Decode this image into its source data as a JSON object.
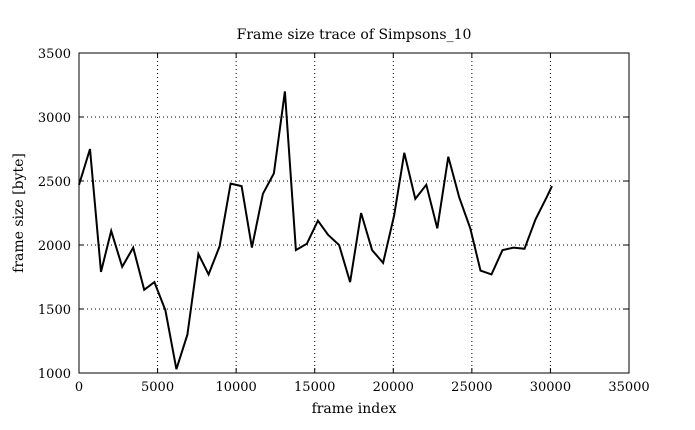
{
  "chart_data": {
    "type": "line",
    "title": "Frame size trace of Simpsons_10",
    "xlabel": "frame index",
    "ylabel": "frame size [byte]",
    "xlim": [
      0,
      35000
    ],
    "ylim": [
      1000,
      3500
    ],
    "xticks": [
      0,
      5000,
      10000,
      15000,
      20000,
      25000,
      30000,
      35000
    ],
    "yticks": [
      1000,
      1500,
      2000,
      2500,
      3000,
      3500
    ],
    "xtick_labels": [
      "0",
      "5000",
      "10000",
      "15000",
      "20000",
      "25000",
      "30000",
      "35000"
    ],
    "ytick_labels": [
      "1000",
      "1500",
      "2000",
      "2500",
      "3000",
      "3500"
    ],
    "grid": true,
    "line_color": "#000000",
    "series": [
      {
        "x": [
          0,
          700,
          1400,
          2050,
          2750,
          3450,
          4150,
          4800,
          5500,
          6200,
          6900,
          7600,
          8250,
          8950,
          9650,
          10350,
          11000,
          11700,
          12400,
          13100,
          13800,
          14500,
          15200,
          15850,
          16550,
          17250,
          17950,
          18650,
          19350,
          20050,
          20700,
          21400,
          22100,
          22800,
          23500,
          24200,
          24900,
          25550,
          26250,
          26950,
          27650,
          28350,
          29050,
          29750,
          30100
        ],
        "y": [
          2470,
          2750,
          1790,
          2110,
          1830,
          1980,
          1650,
          1710,
          1490,
          1030,
          1300,
          1930,
          1770,
          1990,
          2480,
          2460,
          1980,
          2400,
          2560,
          3200,
          1960,
          2010,
          2190,
          2080,
          2000,
          1710,
          2250,
          1960,
          1860,
          2230,
          2720,
          2360,
          2470,
          2130,
          2690,
          2370,
          2130,
          1800,
          1770,
          1960,
          1980,
          1970,
          2200,
          2370,
          2460
        ]
      }
    ]
  }
}
